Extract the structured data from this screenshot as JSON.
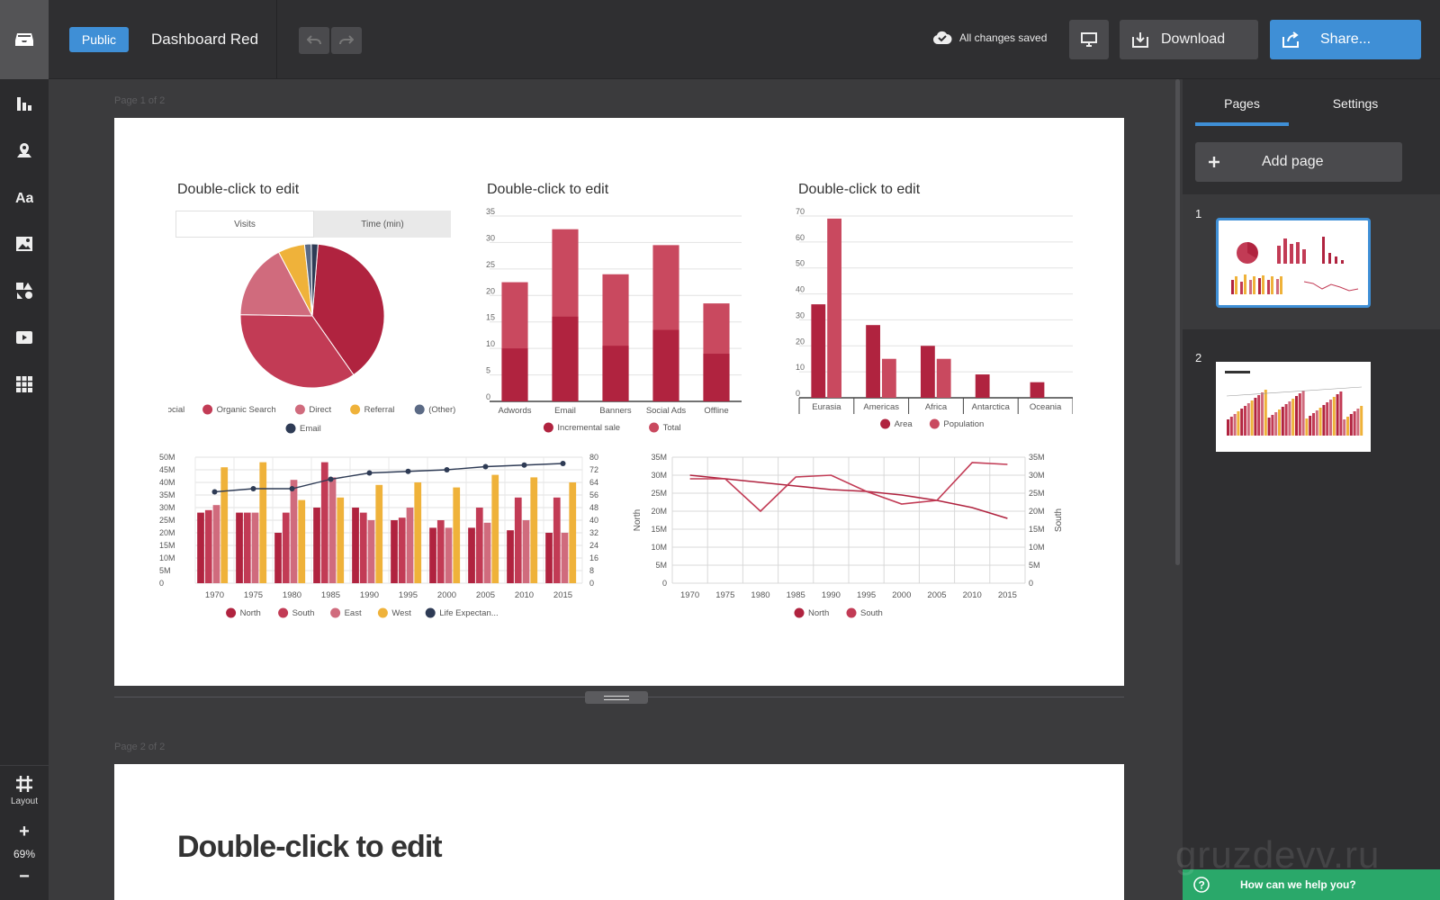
{
  "topbar": {
    "public_label": "Public",
    "doc_title": "Dashboard Red",
    "saved_status": "All changes saved",
    "download_label": "Download",
    "share_label": "Share..."
  },
  "rail": {
    "tools": [
      "charts-icon",
      "map-icon",
      "text-icon",
      "image-icon",
      "shapes-icon",
      "video-icon",
      "widgets-icon"
    ],
    "layout_label": "Layout",
    "zoom": "69%"
  },
  "canvas": {
    "page1_label": "Page 1 of 2",
    "page2_label": "Page 2 of 2",
    "placeholder_title": "Double-click to edit",
    "pie_tabs": [
      "Visits",
      "Time (min)"
    ],
    "page2_title": "Double-click to edit"
  },
  "panel": {
    "tab_pages": "Pages",
    "tab_settings": "Settings",
    "add_page": "Add page",
    "thumbs": [
      "1",
      "2"
    ],
    "help": "How can we help you?"
  },
  "watermark": "gruzdevv.ru",
  "colors": {
    "accent": "#3f8fd6",
    "red_dark": "#b0233f",
    "red": "#c23b55",
    "pink": "#d06b7d",
    "yellow": "#efb23a",
    "navy": "#2e3b55",
    "green": "#2aa86a"
  },
  "chart_data": [
    {
      "type": "pie",
      "title": "Double-click to edit",
      "labels": [
        "Social",
        "Organic Search",
        "Direct",
        "Referral",
        "(Other)",
        "Email"
      ],
      "values": [
        39,
        35,
        17,
        6,
        1.5,
        1.5
      ],
      "colors": [
        "#b0233f",
        "#c23b55",
        "#d06b7d",
        "#efb23a",
        "#5b6a85",
        "#2e3b55"
      ]
    },
    {
      "type": "bar",
      "title": "Double-click to edit",
      "categories": [
        "Adwords",
        "Email",
        "Banners",
        "Social Ads",
        "Offline"
      ],
      "series": [
        {
          "name": "Incremental sale",
          "values": [
            10,
            16,
            10.5,
            13.5,
            9
          ]
        },
        {
          "name": "Total",
          "values": [
            22.5,
            32.5,
            24,
            29.5,
            18.5
          ]
        }
      ],
      "ylim": [
        0,
        35
      ],
      "yticks": [
        0,
        5,
        10,
        15,
        20,
        25,
        30,
        35
      ],
      "colors": [
        "#b0233f",
        "#c9495f"
      ]
    },
    {
      "type": "bar",
      "title": "Double-click to edit",
      "categories": [
        "Eurasia",
        "Americas",
        "Africa",
        "Antarctica",
        "Oceania"
      ],
      "series": [
        {
          "name": "Area",
          "values": [
            36,
            28,
            20,
            9,
            6
          ]
        },
        {
          "name": "Population",
          "values": [
            69,
            15,
            15,
            0,
            0
          ]
        }
      ],
      "ylim": [
        0,
        70
      ],
      "yticks": [
        0,
        10,
        20,
        30,
        40,
        50,
        60,
        70
      ],
      "colors": [
        "#b0233f",
        "#c9495f"
      ]
    },
    {
      "type": "bar",
      "title": "",
      "categories": [
        "1970",
        "1975",
        "1980",
        "1985",
        "1990",
        "1995",
        "2000",
        "2005",
        "2010",
        "2015"
      ],
      "series": [
        {
          "name": "North",
          "values": [
            28,
            28,
            20,
            30,
            30,
            25,
            22,
            22,
            21,
            20
          ]
        },
        {
          "name": "South",
          "values": [
            29,
            28,
            28,
            48,
            28,
            26,
            25,
            30,
            34,
            34
          ]
        },
        {
          "name": "East",
          "values": [
            31,
            28,
            41,
            42,
            25,
            30,
            22,
            24,
            25,
            20
          ]
        },
        {
          "name": "West",
          "values": [
            46,
            48,
            33,
            34,
            39,
            40,
            38,
            43,
            42,
            40
          ]
        },
        {
          "name": "Life Expectan...",
          "values": [
            58,
            60,
            60,
            66,
            70,
            71,
            72,
            74,
            75,
            76
          ]
        }
      ],
      "ylim": [
        0,
        50
      ],
      "yticks": [
        "0",
        "5M",
        "10M",
        "15M",
        "20M",
        "25M",
        "30M",
        "35M",
        "40M",
        "45M",
        "50M"
      ],
      "y2lim": [
        0,
        80
      ],
      "y2ticks": [
        "0",
        "8",
        "16",
        "24",
        "32",
        "40",
        "48",
        "56",
        "64",
        "72",
        "80"
      ],
      "colors": [
        "#b0233f",
        "#c23b55",
        "#d06b7d",
        "#efb23a",
        "#2e3b55"
      ]
    },
    {
      "type": "line",
      "title": "",
      "x": [
        "1970",
        "1975",
        "1980",
        "1985",
        "1990",
        "1995",
        "2000",
        "2005",
        "2010",
        "2015"
      ],
      "series": [
        {
          "name": "North",
          "values": [
            30,
            29,
            28,
            27,
            26,
            25.5,
            24.5,
            23,
            21,
            18
          ]
        },
        {
          "name": "South",
          "values": [
            29,
            29,
            20,
            29.5,
            30,
            25.5,
            22,
            23,
            33.5,
            33
          ]
        }
      ],
      "ylim": [
        0,
        35
      ],
      "yticks": [
        "0",
        "5M",
        "10M",
        "15M",
        "20M",
        "25M",
        "30M",
        "35M"
      ],
      "ylabel": "North",
      "y2label": "South",
      "colors": [
        "#b0233f",
        "#c23b55"
      ]
    }
  ]
}
